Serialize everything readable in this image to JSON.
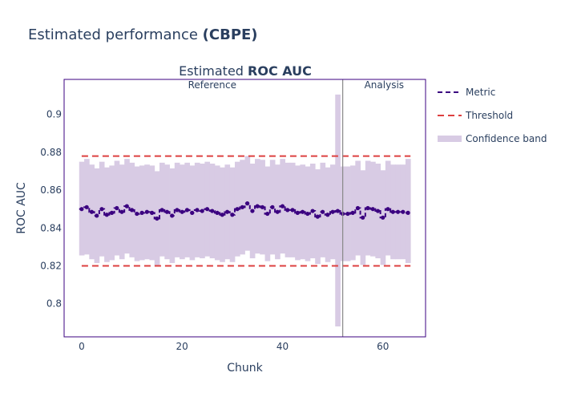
{
  "page_title": {
    "prefix": "Estimated performance ",
    "bold": "(CBPE)"
  },
  "colors": {
    "title_text": "#2a3f5f",
    "metric_line": "#3b0280",
    "threshold": "#dd4040",
    "confidence_band": "#d8cbe4",
    "period_divider": "#888888",
    "plot_border": "#3b0280"
  },
  "chart_data": {
    "type": "line",
    "title": "Estimated ROC AUC",
    "title_prefix": "Estimated ",
    "title_bold": "ROC AUC",
    "xlabel": "Chunk",
    "ylabel": "ROC AUC",
    "xlim": [
      -3.5,
      68.5
    ],
    "ylim": [
      0.7825,
      0.9185
    ],
    "xticks": [
      0,
      20,
      40,
      60
    ],
    "yticks": [
      0.8,
      0.82,
      0.84,
      0.86,
      0.88,
      0.9
    ],
    "ytick_labels": [
      "0.8",
      "0.82",
      "0.84",
      "0.86",
      "0.88",
      "0.9"
    ],
    "grid": false,
    "legend_position": "right",
    "periods": [
      {
        "name": "Reference",
        "start": 0,
        "end": 52
      },
      {
        "name": "Analysis",
        "start": 52,
        "end": 66
      }
    ],
    "period_divider_x": 52,
    "threshold": {
      "upper": 0.878,
      "lower": 0.82
    },
    "series": [
      {
        "name": "Metric",
        "style": "dashed-step-markers",
        "x": [
          0,
          1,
          2,
          3,
          4,
          5,
          6,
          7,
          8,
          9,
          10,
          11,
          12,
          13,
          14,
          15,
          16,
          17,
          18,
          19,
          20,
          21,
          22,
          23,
          24,
          25,
          26,
          27,
          28,
          29,
          30,
          31,
          32,
          33,
          34,
          35,
          36,
          37,
          38,
          39,
          40,
          41,
          42,
          43,
          44,
          45,
          46,
          47,
          48,
          49,
          50,
          51,
          52,
          53,
          54,
          55,
          56,
          57,
          58,
          59,
          60,
          61,
          62,
          63,
          64,
          65
        ],
        "values": [
          0.85,
          0.851,
          0.8485,
          0.8465,
          0.85,
          0.847,
          0.848,
          0.8505,
          0.8485,
          0.8515,
          0.8495,
          0.8475,
          0.848,
          0.8485,
          0.848,
          0.845,
          0.8495,
          0.8485,
          0.8465,
          0.8495,
          0.8485,
          0.8495,
          0.848,
          0.8495,
          0.849,
          0.85,
          0.849,
          0.848,
          0.847,
          0.8485,
          0.847,
          0.85,
          0.851,
          0.853,
          0.849,
          0.8515,
          0.851,
          0.8475,
          0.851,
          0.8485,
          0.8515,
          0.8495,
          0.8495,
          0.848,
          0.8485,
          0.8475,
          0.849,
          0.846,
          0.8485,
          0.847,
          0.8485,
          0.849,
          0.8475,
          0.8475,
          0.848,
          0.8505,
          0.8455,
          0.8505,
          0.85,
          0.849,
          0.8455,
          0.85,
          0.8485,
          0.8485,
          0.8485,
          0.848
        ]
      },
      {
        "name": "Threshold",
        "style": "dashed"
      },
      {
        "name": "Confidence band",
        "style": "band",
        "upper": [
          0.875,
          0.8765,
          0.8735,
          0.8715,
          0.875,
          0.872,
          0.873,
          0.8755,
          0.8735,
          0.8765,
          0.8745,
          0.8725,
          0.873,
          0.8735,
          0.873,
          0.87,
          0.8745,
          0.8735,
          0.8715,
          0.8745,
          0.8735,
          0.8745,
          0.873,
          0.8745,
          0.874,
          0.875,
          0.874,
          0.873,
          0.872,
          0.8735,
          0.872,
          0.875,
          0.876,
          0.878,
          0.874,
          0.8765,
          0.876,
          0.8725,
          0.876,
          0.8735,
          0.8765,
          0.8745,
          0.8745,
          0.873,
          0.8735,
          0.8725,
          0.874,
          0.871,
          0.8745,
          0.872,
          0.8735,
          0.9105,
          0.8725,
          0.8725,
          0.873,
          0.8755,
          0.8705,
          0.8755,
          0.875,
          0.874,
          0.8705,
          0.8755,
          0.8735,
          0.8735,
          0.8735,
          0.8765
        ],
        "lower": [
          0.8255,
          0.826,
          0.8235,
          0.8215,
          0.825,
          0.822,
          0.823,
          0.8255,
          0.8235,
          0.8265,
          0.8245,
          0.8225,
          0.823,
          0.8235,
          0.823,
          0.82,
          0.825,
          0.8235,
          0.8215,
          0.8245,
          0.8235,
          0.8245,
          0.823,
          0.8245,
          0.824,
          0.825,
          0.824,
          0.823,
          0.822,
          0.8235,
          0.822,
          0.825,
          0.826,
          0.828,
          0.824,
          0.8265,
          0.826,
          0.8225,
          0.826,
          0.8235,
          0.8265,
          0.8245,
          0.8245,
          0.823,
          0.8235,
          0.8225,
          0.824,
          0.821,
          0.8245,
          0.822,
          0.8235,
          0.788,
          0.8225,
          0.8225,
          0.823,
          0.8255,
          0.8205,
          0.8255,
          0.825,
          0.824,
          0.8205,
          0.8255,
          0.8235,
          0.8235,
          0.8235,
          0.8215
        ]
      }
    ]
  }
}
